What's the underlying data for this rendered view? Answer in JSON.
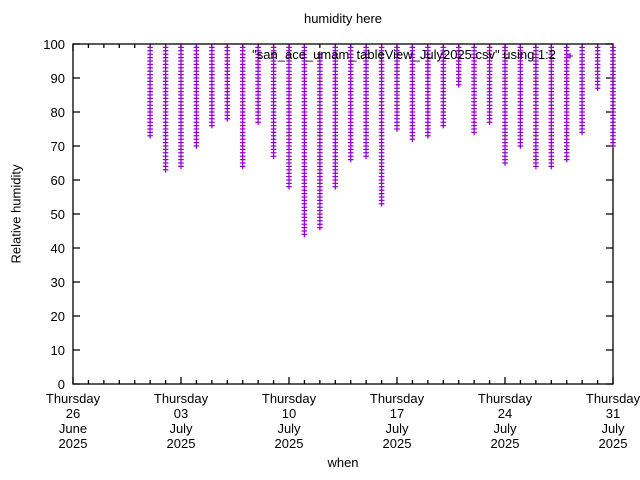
{
  "title": "humidity here",
  "legend": {
    "entry": "\"san_ace_umam_tableView_July2025.csv\" using 1:2",
    "position": "top-center-inside"
  },
  "axes": {
    "x": {
      "label": "when",
      "major_tick_labels": [
        [
          "Thursday",
          "26",
          "June",
          "2025"
        ],
        [
          "Thursday",
          "03",
          "July",
          "2025"
        ],
        [
          "Thursday",
          "10",
          "July",
          "2025"
        ],
        [
          "Thursday",
          "17",
          "July",
          "2025"
        ],
        [
          "Thursday",
          "24",
          "July",
          "2025"
        ],
        [
          "Thursday",
          "31",
          "July",
          "2025"
        ]
      ],
      "minor_tick_interval_days": 1,
      "major_tick_interval_days": 7
    },
    "y": {
      "label": "Relative humidity",
      "tick_labels": [
        "0",
        "10",
        "20",
        "30",
        "40",
        "50",
        "60",
        "70",
        "80",
        "90",
        "100"
      ],
      "range": [
        0,
        100
      ]
    }
  },
  "colors": {
    "marker": "#9400d3",
    "axis": "#000000",
    "text": "#000000",
    "background": "#ffffff"
  },
  "chart_data": {
    "type": "scatter",
    "marker": "plus",
    "title": "humidity here",
    "xlabel": "when",
    "ylabel": "Relative humidity",
    "ylim": [
      0,
      100
    ],
    "x_range": [
      "Thursday 26 June 2025",
      "Thursday 31 July 2025"
    ],
    "grid": false,
    "legend_position": "top-center-inside",
    "series": [
      {
        "name": "\"san_ace_umam_tableView_July2025.csv\" using 1:2",
        "sampling_note": "integer % readings; each July day spans min..max in steps of 1",
        "days": [
          {
            "date": "2025-07-01",
            "min": 73,
            "max": 99
          },
          {
            "date": "2025-07-02",
            "min": 63,
            "max": 99
          },
          {
            "date": "2025-07-03",
            "min": 64,
            "max": 99
          },
          {
            "date": "2025-07-04",
            "min": 70,
            "max": 99
          },
          {
            "date": "2025-07-05",
            "min": 76,
            "max": 99
          },
          {
            "date": "2025-07-06",
            "min": 78,
            "max": 99
          },
          {
            "date": "2025-07-07",
            "min": 64,
            "max": 99
          },
          {
            "date": "2025-07-08",
            "min": 77,
            "max": 99
          },
          {
            "date": "2025-07-09",
            "min": 67,
            "max": 99
          },
          {
            "date": "2025-07-10",
            "min": 58,
            "max": 99
          },
          {
            "date": "2025-07-11",
            "min": 44,
            "max": 99
          },
          {
            "date": "2025-07-12",
            "min": 46,
            "max": 97
          },
          {
            "date": "2025-07-13",
            "min": 58,
            "max": 99
          },
          {
            "date": "2025-07-14",
            "min": 66,
            "max": 99
          },
          {
            "date": "2025-07-15",
            "min": 67,
            "max": 99
          },
          {
            "date": "2025-07-16",
            "min": 53,
            "max": 99
          },
          {
            "date": "2025-07-17",
            "min": 75,
            "max": 99
          },
          {
            "date": "2025-07-18",
            "min": 72,
            "max": 99
          },
          {
            "date": "2025-07-19",
            "min": 73,
            "max": 99
          },
          {
            "date": "2025-07-20",
            "min": 76,
            "max": 99
          },
          {
            "date": "2025-07-21",
            "min": 88,
            "max": 99
          },
          {
            "date": "2025-07-22",
            "min": 74,
            "max": 99
          },
          {
            "date": "2025-07-23",
            "min": 77,
            "max": 99
          },
          {
            "date": "2025-07-24",
            "min": 65,
            "max": 99
          },
          {
            "date": "2025-07-25",
            "min": 70,
            "max": 99
          },
          {
            "date": "2025-07-26",
            "min": 64,
            "max": 99
          },
          {
            "date": "2025-07-27",
            "min": 64,
            "max": 99
          },
          {
            "date": "2025-07-28",
            "min": 66,
            "max": 99
          },
          {
            "date": "2025-07-29",
            "min": 74,
            "max": 99
          },
          {
            "date": "2025-07-30",
            "min": 87,
            "max": 99
          },
          {
            "date": "2025-07-31",
            "min": 70,
            "max": 99
          }
        ]
      }
    ]
  }
}
